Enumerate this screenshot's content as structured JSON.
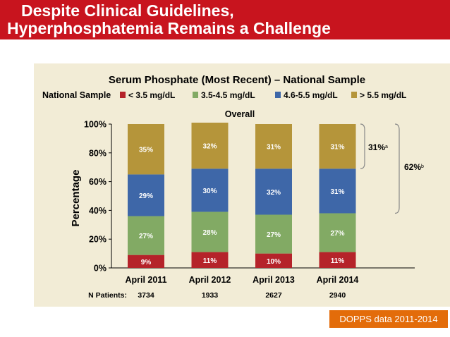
{
  "slide": {
    "title_line1": "Despite Clinical Guidelines,",
    "title_line2": "Hyperphosphatemia Remains a Challenge",
    "source": "DOPPS data  2011-2014"
  },
  "chart_data": {
    "type": "bar",
    "stacked": true,
    "title": "Serum Phosphate (Most Recent) – National Sample",
    "subtitle": "Overall",
    "legend_title": "National Sample",
    "legend_position": "top",
    "xlabel": "",
    "ylabel": "Percentage",
    "ylim": [
      0,
      100
    ],
    "yticks": [
      "0%",
      "20%",
      "40%",
      "60%",
      "80%",
      "100%"
    ],
    "categories": [
      "April 2011",
      "April 2012",
      "April 2013",
      "April 2014"
    ],
    "series": [
      {
        "name": "< 3.5 mg/dL",
        "color": "#b5232a",
        "values": [
          9,
          11,
          10,
          11
        ]
      },
      {
        "name": "3.5-4.5 mg/dL",
        "color": "#82aa64",
        "values": [
          27,
          28,
          27,
          27
        ]
      },
      {
        "name": "4.6-5.5 mg/dL",
        "color": "#3e67a8",
        "values": [
          29,
          30,
          32,
          31
        ]
      },
      {
        "name": "> 5.5 mg/dL",
        "color": "#b5953a",
        "values": [
          35,
          32,
          31,
          31
        ]
      }
    ],
    "n_patients_label": "N Patients:",
    "n_patients": [
      "3734",
      "1933",
      "2627",
      "2940"
    ],
    "annotations": [
      {
        "text": "31%",
        "sup": "a",
        "span": "> 5.5 mg/dL"
      },
      {
        "text": "62%",
        "sup": "b",
        "span": "4.6-5.5 mg/dL + > 5.5 mg/dL"
      }
    ],
    "grid": false
  }
}
